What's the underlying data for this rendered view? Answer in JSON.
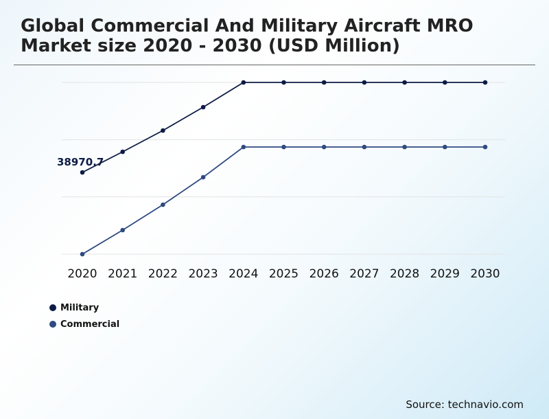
{
  "chart_data": {
    "type": "line",
    "title": "Global Commercial And Military Aircraft MRO Market size 2020 - 2030 (USD Million)",
    "categories": [
      "2020",
      "2021",
      "2022",
      "2023",
      "2024",
      "2025",
      "2026",
      "2027",
      "2028",
      "2029",
      "2030"
    ],
    "series": [
      {
        "name": "Military",
        "color": "#0d1b45",
        "values": [
          38970.7,
          48800,
          58950,
          70085,
          81875,
          81875,
          81875,
          81875,
          81875,
          81875,
          81875
        ]
      },
      {
        "name": "Commercial",
        "color": "#2e4a80",
        "values": [
          0,
          11460,
          23580,
          36680,
          51090,
          51090,
          51090,
          51090,
          51090,
          51090,
          51090
        ]
      }
    ],
    "data_labels": [
      {
        "series": "Military",
        "category": "2020",
        "text": "38970.7"
      }
    ],
    "ylim": [
      0,
      81875
    ],
    "grid": true,
    "legend_position": "bottom-left"
  },
  "source": "Source: technavio.com"
}
